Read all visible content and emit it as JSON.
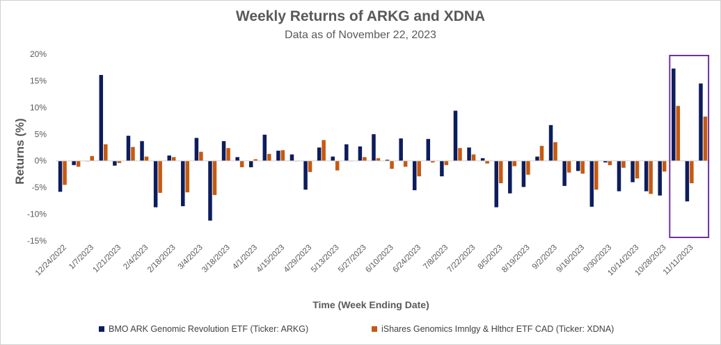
{
  "chart_data": {
    "type": "bar",
    "title": "Weekly Returns of  ARKG and XDNA",
    "subtitle": "Data as of November 22, 2023",
    "xlabel": "Time (Week Ending Date)",
    "ylabel": "Returns (%)",
    "ylim": [
      -15,
      20
    ],
    "yticks": [
      "20%",
      "15%",
      "10%",
      "5%",
      "0%",
      "-5%",
      "-10%",
      "-15%"
    ],
    "x_tick_labels": [
      "12/24/2022",
      "1/7/2023",
      "1/21/2023",
      "2/4/2023",
      "2/18/2023",
      "3/4/2023",
      "3/18/2023",
      "4/1/2023",
      "4/15/2023",
      "4/29/2023",
      "5/13/2023",
      "5/27/2023",
      "6/10/2023",
      "6/24/2023",
      "7/8/2023",
      "7/22/2023",
      "8/5/2023",
      "8/19/2023",
      "9/2/2023",
      "9/16/2023",
      "9/30/2023",
      "10/14/2023",
      "10/28/2023",
      "11/11/2023"
    ],
    "series": [
      {
        "name": "BMO ARK Genomic Revolution ETF (Ticker: ARKG)",
        "color": "#0d1d5c",
        "values": [
          -5.8,
          -0.8,
          0.0,
          16.1,
          -0.9,
          4.7,
          3.7,
          -8.7,
          1.0,
          -8.5,
          4.3,
          -11.2,
          3.7,
          0.7,
          -1.2,
          4.9,
          1.9,
          1.2,
          -5.4,
          2.5,
          0.8,
          3.1,
          2.7,
          5.0,
          0.2,
          4.2,
          -5.5,
          4.1,
          -2.9,
          9.4,
          2.5,
          0.5,
          -8.7,
          -6.1,
          -4.9,
          0.8,
          6.7,
          -4.7,
          -1.9,
          -8.6,
          -0.3,
          -5.7,
          -4.0,
          -5.7,
          -6.5,
          17.3,
          -7.6,
          14.5
        ]
      },
      {
        "name": "iShares Genomics Imnlgy & Hlthcr ETF CAD (Ticker: XDNA)",
        "color": "#c65911",
        "values": [
          -4.5,
          -1.1,
          0.9,
          3.1,
          -0.4,
          2.6,
          0.8,
          -6.0,
          0.7,
          -5.9,
          1.7,
          -6.4,
          2.4,
          -1.2,
          0.3,
          1.3,
          2.0,
          0.0,
          -2.1,
          3.9,
          -1.8,
          0.0,
          0.7,
          0.5,
          -1.5,
          -1.1,
          -2.9,
          -0.3,
          -0.8,
          2.4,
          1.2,
          -0.5,
          -4.2,
          -1.0,
          -2.6,
          2.8,
          3.5,
          -2.2,
          -2.4,
          -5.4,
          -0.8,
          -1.3,
          -3.3,
          -6.2,
          -2.0,
          10.3,
          -4.2,
          8.3
        ]
      }
    ],
    "highlight": {
      "description": "purple box around last three weeks",
      "color": "#7030a0"
    },
    "legend_position": "bottom",
    "grid": false
  }
}
